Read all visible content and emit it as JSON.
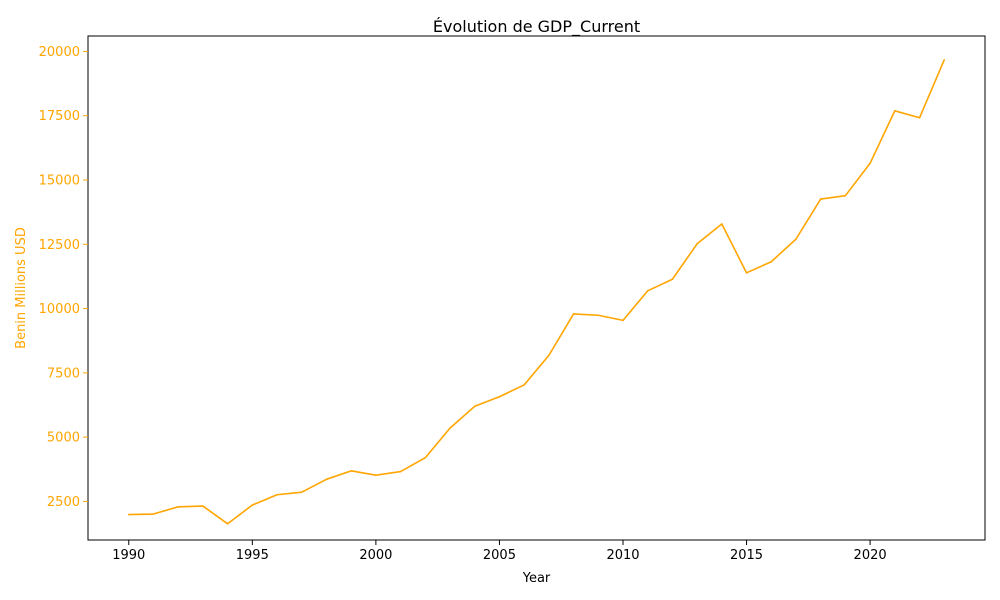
{
  "chart_data": {
    "type": "line",
    "title": "Évolution de GDP_Current",
    "xlabel": "Year",
    "ylabel": "Benin Millions USD",
    "xlim": [
      1988.35,
      2024.65
    ],
    "ylim": [
      1000,
      20600
    ],
    "xticks": [
      1990,
      1995,
      2000,
      2005,
      2010,
      2015,
      2020
    ],
    "yticks": [
      2500,
      5000,
      7500,
      10000,
      12500,
      15000,
      17500,
      20000
    ],
    "grid": false,
    "legend": "none",
    "series": [
      {
        "name": "Benin Millions USD",
        "color": "#FFA500",
        "x": [
          1990,
          1991,
          1992,
          1993,
          1994,
          1995,
          1996,
          1997,
          1998,
          1999,
          2000,
          2001,
          2002,
          2003,
          2004,
          2005,
          2006,
          2007,
          2008,
          2009,
          2010,
          2011,
          2012,
          2013,
          2014,
          2015,
          2016,
          2017,
          2018,
          2019,
          2020,
          2021,
          2022,
          2023
        ],
        "values": [
          1990,
          2010,
          2290,
          2320,
          1630,
          2360,
          2760,
          2860,
          3360,
          3690,
          3520,
          3660,
          4200,
          5350,
          6200,
          6570,
          7030,
          8180,
          9790,
          9740,
          9540,
          10690,
          11140,
          12520,
          13290,
          11390,
          11820,
          12700,
          14260,
          14390,
          15650,
          17690,
          17420,
          19670
        ]
      }
    ]
  }
}
